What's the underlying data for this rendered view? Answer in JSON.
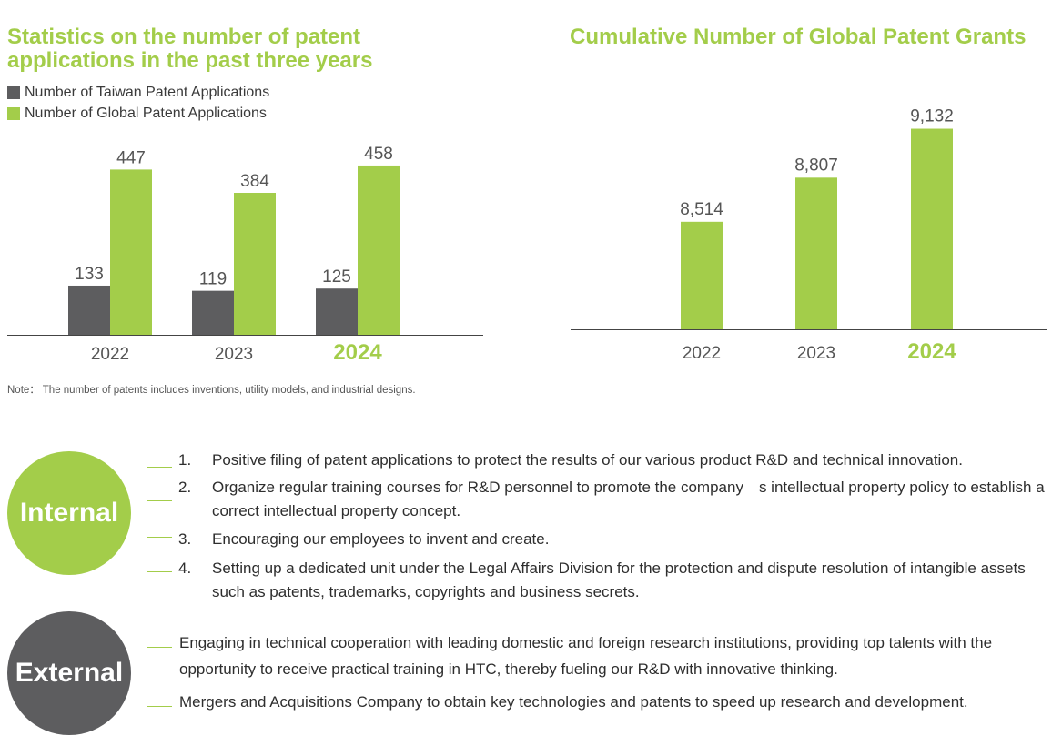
{
  "left_chart": {
    "title": "Statistics on the number of patent applications in the past three years",
    "legend": [
      "Number of Taiwan Patent Applications",
      "Number of Global Patent Applications"
    ],
    "note": "Note： The number of patents includes inventions, utility models, and industrial designs."
  },
  "right_chart": {
    "title": "Cumulative Number of Global Patent Grants"
  },
  "colors": {
    "green": "#a3cd4a",
    "gray": "#5d5d5f",
    "text": "#3a3a3a"
  },
  "chart_data": [
    {
      "type": "bar",
      "title": "Statistics on the number of patent applications in the past three years",
      "categories": [
        "2022",
        "2023",
        "2024"
      ],
      "series": [
        {
          "name": "Number of Taiwan Patent Applications",
          "values": [
            133,
            119,
            125
          ],
          "labels": [
            "133",
            "119",
            "125"
          ]
        },
        {
          "name": "Number of Global Patent Applications",
          "values": [
            447,
            384,
            458
          ],
          "labels": [
            "447",
            "384",
            "458"
          ]
        }
      ],
      "highlight_category": "2024",
      "legend_position": "top-left",
      "grid": false,
      "ylim": [
        0,
        480
      ]
    },
    {
      "type": "bar",
      "title": "Cumulative Number of Global Patent Grants",
      "categories": [
        "2022",
        "2023",
        "2024"
      ],
      "values": [
        8514,
        8807,
        9132
      ],
      "labels": [
        "8,514",
        "8,807",
        "9,132"
      ],
      "highlight_category": "2024",
      "grid": false,
      "ylim": [
        7800,
        9250
      ]
    }
  ],
  "internal": {
    "label": "Internal",
    "items": [
      {
        "num": "1.",
        "text": "Positive filing of patent applications to protect the results of our various product R&D and technical innovation."
      },
      {
        "num": "2.",
        "text": "Organize regular training courses for R&D personnel to promote the company　s intellectual property policy to establish a correct intellectual property concept."
      },
      {
        "num": "3.",
        "text": "Encouraging our employees to invent and create."
      },
      {
        "num": "4.",
        "text": "Setting up a dedicated unit under the Legal Affairs Division for the protection and dispute resolution of intangible assets such as patents, trademarks, copyrights and business secrets."
      }
    ]
  },
  "external": {
    "label": "External",
    "items": [
      {
        "text": "Engaging in technical cooperation with leading domestic and foreign research institutions, providing top talents with the opportunity to receive practical training in HTC, thereby fueling our R&D with innovative thinking."
      },
      {
        "text": "Mergers and Acquisitions Company to obtain key technologies and patents to speed up research and development."
      }
    ]
  }
}
